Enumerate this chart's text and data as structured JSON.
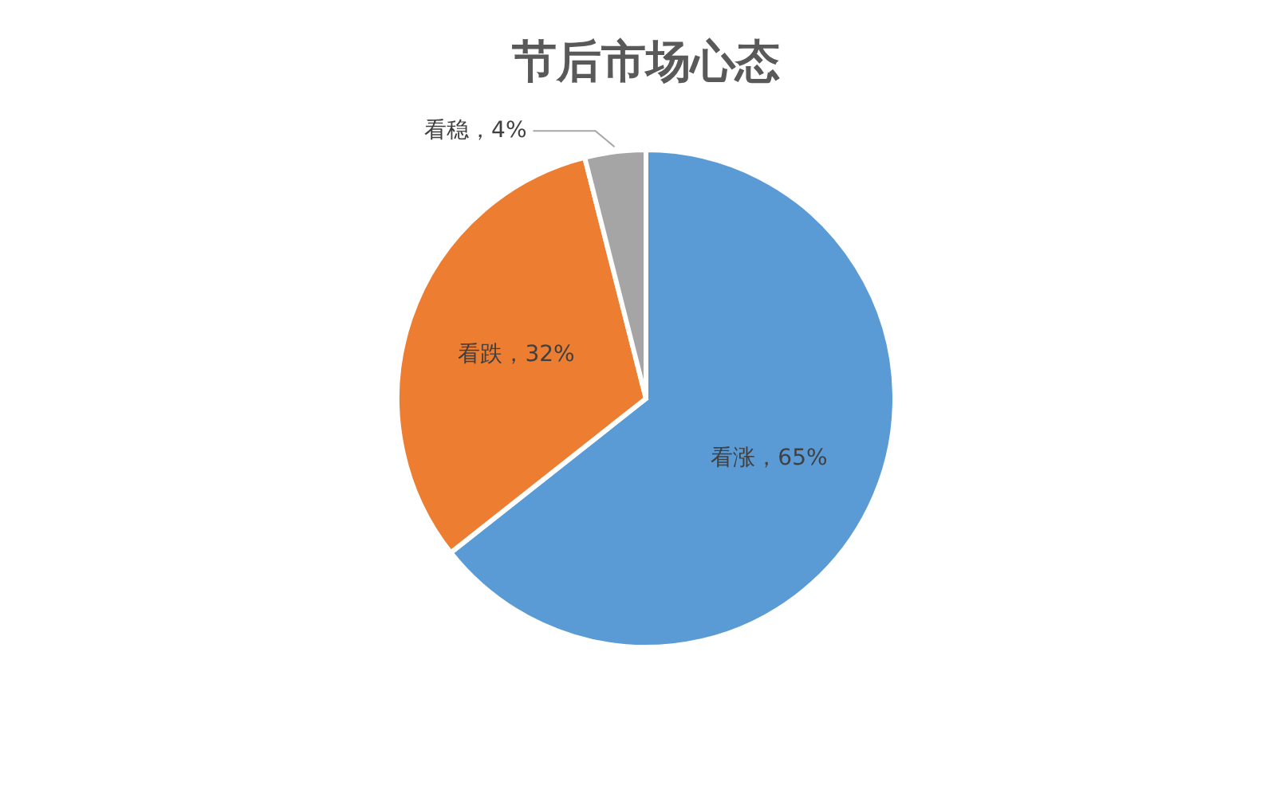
{
  "chart_data": {
    "type": "pie",
    "title": "节后市场心态",
    "categories": [
      "看涨",
      "看跌",
      "看稳"
    ],
    "values": [
      65,
      32,
      4
    ],
    "colors": [
      "#5b9bd5",
      "#ed7d31",
      "#a5a5a5"
    ],
    "value_labels": [
      "，65%",
      "，32%",
      "，4%"
    ]
  }
}
